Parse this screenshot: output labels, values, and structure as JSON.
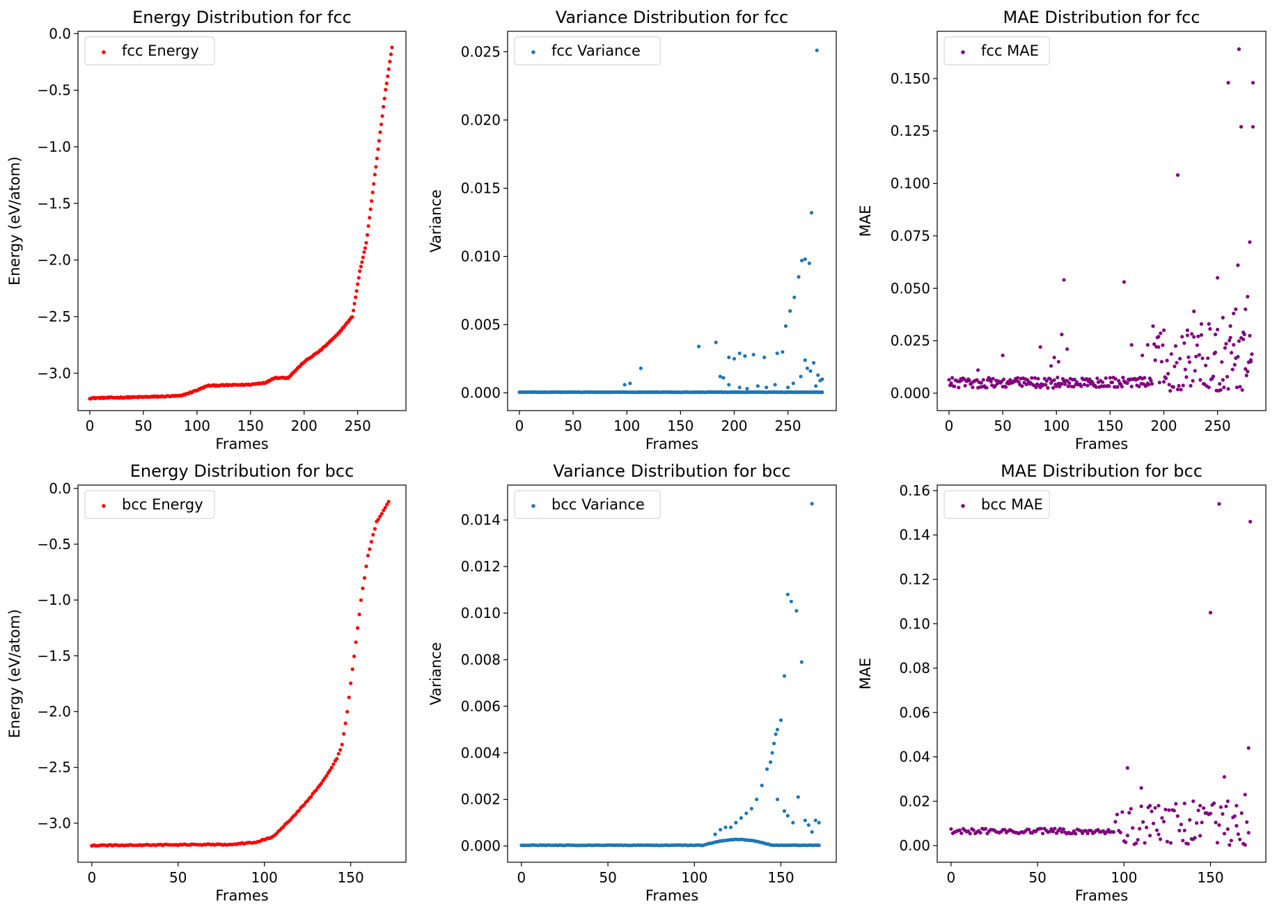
{
  "chart_data": [
    {
      "id": "fcc-energy",
      "type": "scatter",
      "title": "Energy Distribution for fcc",
      "xlabel": "Frames",
      "ylabel": "Energy (eV/atom)",
      "legend": "fcc Energy",
      "legend_position": "top-left",
      "color": "#ff0000",
      "xlim": [
        -11,
        295
      ],
      "ylim": [
        -3.33,
        0.02
      ],
      "xticks": [
        0,
        50,
        100,
        150,
        200,
        250
      ],
      "xtick_labels": [
        "0",
        "50",
        "100",
        "150",
        "200",
        "250"
      ],
      "yticks": [
        0.0,
        -0.5,
        -1.0,
        -1.5,
        -2.0,
        -2.5,
        -3.0
      ],
      "ytick_labels": [
        "0.0",
        "−0.5",
        "−1.0",
        "−1.5",
        "−2.0",
        "−2.5",
        "−3.0"
      ],
      "gen": "energy",
      "n": 283,
      "anchors": [
        [
          0,
          -3.22
        ],
        [
          50,
          -3.21
        ],
        [
          85,
          -3.2
        ],
        [
          100,
          -3.15
        ],
        [
          110,
          -3.11
        ],
        [
          150,
          -3.1
        ],
        [
          165,
          -3.08
        ],
        [
          172,
          -3.04
        ],
        [
          185,
          -3.04
        ],
        [
          200,
          -2.9
        ],
        [
          215,
          -2.8
        ],
        [
          230,
          -2.67
        ],
        [
          245,
          -2.5
        ],
        [
          252,
          -2.1
        ],
        [
          258,
          -1.85
        ],
        [
          264,
          -1.4
        ],
        [
          270,
          -0.95
        ],
        [
          276,
          -0.5
        ],
        [
          282,
          -0.12
        ]
      ]
    },
    {
      "id": "fcc-variance",
      "type": "scatter",
      "title": "Variance Distribution for fcc",
      "xlabel": "Frames",
      "ylabel": "Variance",
      "legend": "fcc Variance",
      "legend_position": "top-left",
      "color": "#1f77b4",
      "xlim": [
        -11,
        295
      ],
      "ylim": [
        -0.0013,
        0.0265
      ],
      "xticks": [
        0,
        50,
        100,
        150,
        200,
        250
      ],
      "xtick_labels": [
        "0",
        "50",
        "100",
        "150",
        "200",
        "250"
      ],
      "yticks": [
        0.0,
        0.005,
        0.01,
        0.015,
        0.02,
        0.025
      ],
      "ytick_labels": [
        "0.000",
        "0.005",
        "0.010",
        "0.015",
        "0.020",
        "0.025"
      ],
      "gen": "low",
      "n": 283,
      "base": 5e-05,
      "noise": 3e-05,
      "extra": [
        [
          98,
          0.0006
        ],
        [
          103,
          0.0007
        ],
        [
          113,
          0.0018
        ],
        [
          167,
          0.0034
        ],
        [
          183,
          0.0037
        ],
        [
          187,
          0.0012
        ],
        [
          190,
          0.0011
        ],
        [
          195,
          0.0026
        ],
        [
          200,
          0.0025
        ],
        [
          205,
          0.0029
        ],
        [
          210,
          0.0027
        ],
        [
          218,
          0.0028
        ],
        [
          228,
          0.0026
        ],
        [
          240,
          0.0029
        ],
        [
          245,
          0.003
        ],
        [
          248,
          0.0049
        ],
        [
          252,
          0.006
        ],
        [
          256,
          0.007
        ],
        [
          260,
          0.0085
        ],
        [
          263,
          0.0097
        ],
        [
          266,
          0.0098
        ],
        [
          270,
          0.0095
        ],
        [
          272,
          0.0132
        ],
        [
          277,
          0.0251
        ],
        [
          195,
          0.0006
        ],
        [
          205,
          0.0004
        ],
        [
          212,
          0.0003
        ],
        [
          222,
          0.0005
        ],
        [
          230,
          0.0004
        ],
        [
          238,
          0.0006
        ],
        [
          250,
          0.0004
        ],
        [
          255,
          0.0007
        ],
        [
          262,
          0.0012
        ],
        [
          266,
          0.0024
        ],
        [
          268,
          0.0018
        ],
        [
          271,
          0.0016
        ],
        [
          274,
          0.0022
        ],
        [
          276,
          0.0005
        ],
        [
          278,
          0.0013
        ],
        [
          280,
          0.0009
        ],
        [
          282,
          0.001
        ]
      ]
    },
    {
      "id": "fcc-mae",
      "type": "scatter",
      "title": "MAE Distribution for fcc",
      "xlabel": "Frames",
      "ylabel": "MAE",
      "legend": "fcc MAE",
      "legend_position": "top-left",
      "color": "#800080",
      "xlim": [
        -11,
        295
      ],
      "ylim": [
        -0.0083,
        0.1725
      ],
      "xticks": [
        0,
        50,
        100,
        150,
        200,
        250
      ],
      "xtick_labels": [
        "0",
        "50",
        "100",
        "150",
        "200",
        "250"
      ],
      "yticks": [
        0.0,
        0.025,
        0.05,
        0.075,
        0.1,
        0.125,
        0.15
      ],
      "ytick_labels": [
        "0.000",
        "0.025",
        "0.050",
        "0.075",
        "0.100",
        "0.125",
        "0.150"
      ],
      "gen": "mae",
      "n": 283,
      "base": 0.005,
      "noise": 0.0025,
      "scatter_from": 190,
      "scatter_max": 0.032,
      "extra": [
        [
          27,
          0.011
        ],
        [
          50,
          0.018
        ],
        [
          85,
          0.022
        ],
        [
          95,
          0.013
        ],
        [
          98,
          0.017
        ],
        [
          102,
          0.015
        ],
        [
          105,
          0.028
        ],
        [
          107,
          0.054
        ],
        [
          110,
          0.021
        ],
        [
          163,
          0.053
        ],
        [
          170,
          0.023
        ],
        [
          180,
          0.018
        ],
        [
          185,
          0.023
        ],
        [
          195,
          0.022
        ],
        [
          200,
          0.03
        ],
        [
          213,
          0.104
        ],
        [
          222,
          0.03
        ],
        [
          228,
          0.039
        ],
        [
          235,
          0.033
        ],
        [
          242,
          0.033
        ],
        [
          248,
          0.028
        ],
        [
          250,
          0.055
        ],
        [
          255,
          0.036
        ],
        [
          260,
          0.148
        ],
        [
          262,
          0.032
        ],
        [
          265,
          0.038
        ],
        [
          267,
          0.04
        ],
        [
          269,
          0.061
        ],
        [
          270,
          0.164
        ],
        [
          272,
          0.127
        ],
        [
          274,
          0.029
        ],
        [
          276,
          0.04
        ],
        [
          278,
          0.046
        ],
        [
          280,
          0.072
        ],
        [
          281,
          0.015
        ],
        [
          283,
          0.148
        ],
        [
          283,
          0.127
        ]
      ]
    },
    {
      "id": "bcc-energy",
      "type": "scatter",
      "title": "Energy Distribution for bcc",
      "xlabel": "Frames",
      "ylabel": "Energy (eV/atom)",
      "legend": "bcc Energy",
      "legend_position": "top-left",
      "color": "#ff0000",
      "xlim": [
        -8,
        182
      ],
      "ylim": [
        -3.35,
        0.03
      ],
      "xticks": [
        0,
        50,
        100,
        150
      ],
      "xtick_labels": [
        "0",
        "50",
        "100",
        "150"
      ],
      "yticks": [
        0.0,
        -0.5,
        -1.0,
        -1.5,
        -2.0,
        -2.5,
        -3.0
      ],
      "ytick_labels": [
        "0.0",
        "−0.5",
        "−1.0",
        "−1.5",
        "−2.0",
        "−2.5",
        "−3.0"
      ],
      "gen": "energy",
      "n": 173,
      "anchors": [
        [
          0,
          -3.2
        ],
        [
          80,
          -3.19
        ],
        [
          95,
          -3.17
        ],
        [
          105,
          -3.12
        ],
        [
          115,
          -2.97
        ],
        [
          125,
          -2.8
        ],
        [
          135,
          -2.6
        ],
        [
          142,
          -2.42
        ],
        [
          145,
          -2.3
        ],
        [
          148,
          -2.0
        ],
        [
          152,
          -1.5
        ],
        [
          156,
          -1.0
        ],
        [
          160,
          -0.6
        ],
        [
          165,
          -0.3
        ],
        [
          172,
          -0.12
        ]
      ]
    },
    {
      "id": "bcc-variance",
      "type": "scatter",
      "title": "Variance Distribution for bcc",
      "xlabel": "Frames",
      "ylabel": "Variance",
      "legend": "bcc Variance",
      "legend_position": "top-left",
      "color": "#1f77b4",
      "xlim": [
        -8,
        182
      ],
      "ylim": [
        -0.0007,
        0.0155
      ],
      "xticks": [
        0,
        50,
        100,
        150
      ],
      "xtick_labels": [
        "0",
        "50",
        "100",
        "150"
      ],
      "yticks": [
        0.0,
        0.002,
        0.004,
        0.006,
        0.008,
        0.01,
        0.012,
        0.014
      ],
      "ytick_labels": [
        "0.000",
        "0.002",
        "0.004",
        "0.006",
        "0.008",
        "0.010",
        "0.012",
        "0.014"
      ],
      "gen": "bccvar",
      "n": 173,
      "base": 3e-05,
      "noise": 2e-05,
      "extra": [
        [
          112,
          0.0005
        ],
        [
          115,
          0.0007
        ],
        [
          118,
          0.0008
        ],
        [
          121,
          0.0008
        ],
        [
          124,
          0.001
        ],
        [
          127,
          0.0012
        ],
        [
          130,
          0.0014
        ],
        [
          133,
          0.0016
        ],
        [
          136,
          0.002
        ],
        [
          139,
          0.0026
        ],
        [
          142,
          0.0033
        ],
        [
          144,
          0.0036
        ],
        [
          145,
          0.004
        ],
        [
          146,
          0.0044
        ],
        [
          147,
          0.0048
        ],
        [
          148,
          0.005
        ],
        [
          150,
          0.0054
        ],
        [
          152,
          0.0073
        ],
        [
          154,
          0.0108
        ],
        [
          156,
          0.0105
        ],
        [
          159,
          0.0101
        ],
        [
          162,
          0.0079
        ],
        [
          168,
          0.0147
        ],
        [
          148,
          0.002
        ],
        [
          152,
          0.0015
        ],
        [
          154,
          0.0013
        ],
        [
          157,
          0.001
        ],
        [
          160,
          0.0021
        ],
        [
          164,
          0.0011
        ],
        [
          166,
          0.0009
        ],
        [
          168,
          0.0006
        ],
        [
          170,
          0.0011
        ],
        [
          172,
          0.001
        ]
      ]
    },
    {
      "id": "bcc-mae",
      "type": "scatter",
      "title": "MAE Distribution for bcc",
      "xlabel": "Frames",
      "ylabel": "MAE",
      "legend": "bcc MAE",
      "legend_position": "top-left",
      "color": "#800080",
      "xlim": [
        -8,
        182
      ],
      "ylim": [
        -0.0075,
        0.1625
      ],
      "xticks": [
        0,
        50,
        100,
        150
      ],
      "xtick_labels": [
        "0",
        "50",
        "100",
        "150"
      ],
      "yticks": [
        0.0,
        0.02,
        0.04,
        0.06,
        0.08,
        0.1,
        0.12,
        0.14,
        0.16
      ],
      "ytick_labels": [
        "0.00",
        "0.02",
        "0.04",
        "0.06",
        "0.08",
        "0.10",
        "0.12",
        "0.14",
        "0.16"
      ],
      "gen": "mae",
      "n": 173,
      "base": 0.0065,
      "noise": 0.0012,
      "scatter_from": 95,
      "scatter_max": 0.02,
      "extra": [
        [
          102,
          0.035
        ],
        [
          110,
          0.026
        ],
        [
          115,
          0.018
        ],
        [
          120,
          0.018
        ],
        [
          135,
          0.019
        ],
        [
          140,
          0.02
        ],
        [
          144,
          0.018
        ],
        [
          150,
          0.105
        ],
        [
          155,
          0.154
        ],
        [
          158,
          0.031
        ],
        [
          160,
          0.02
        ],
        [
          165,
          0.018
        ],
        [
          170,
          0.023
        ],
        [
          172,
          0.044
        ],
        [
          173,
          0.146
        ]
      ]
    }
  ]
}
